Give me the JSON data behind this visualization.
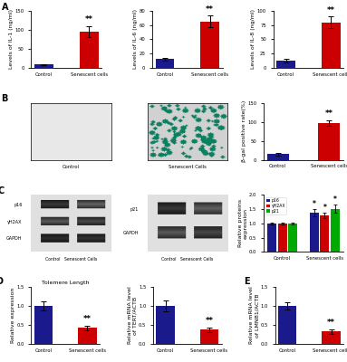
{
  "panel_A": {
    "charts": [
      {
        "ylabel": "Levels of IL-1 (ng/ml)",
        "ylim": [
          0,
          150
        ],
        "yticks": [
          0,
          50,
          100,
          150
        ],
        "bars": [
          {
            "label": "Control",
            "value": 8,
            "error": 2,
            "color": "#1a1a8c"
          },
          {
            "label": "Senescent cells",
            "value": 95,
            "error": 15,
            "color": "#cc0000"
          }
        ],
        "sig": "**",
        "sig_above": "senescent"
      },
      {
        "ylabel": "Levels of IL-6 (ng/ml)",
        "ylim": [
          0,
          80
        ],
        "yticks": [
          0,
          20,
          40,
          60,
          80
        ],
        "bars": [
          {
            "label": "Control",
            "value": 12,
            "error": 2,
            "color": "#1a1a8c"
          },
          {
            "label": "Senescent cells",
            "value": 65,
            "error": 8,
            "color": "#cc0000"
          }
        ],
        "sig": "**",
        "sig_above": "senescent"
      },
      {
        "ylabel": "Levels of IL-8 (ng/ml)",
        "ylim": [
          0,
          100
        ],
        "yticks": [
          0,
          25,
          50,
          75,
          100
        ],
        "bars": [
          {
            "label": "Control",
            "value": 13,
            "error": 3,
            "color": "#1a1a8c"
          },
          {
            "label": "Senescent cells",
            "value": 80,
            "error": 10,
            "color": "#cc0000"
          }
        ],
        "sig": "**",
        "sig_above": "senescent"
      }
    ]
  },
  "panel_B": {
    "chart": {
      "ylabel": "β-gal positive rate(%)",
      "ylim": [
        0,
        150
      ],
      "yticks": [
        0,
        50,
        100,
        150
      ],
      "bars": [
        {
          "label": "Control",
          "value": 15,
          "error": 3,
          "color": "#1a1a8c"
        },
        {
          "label": "Senescent cells",
          "value": 97,
          "error": 8,
          "color": "#cc0000"
        }
      ],
      "sig": "**",
      "sig_above": "senescent"
    }
  },
  "panel_C": {
    "chart": {
      "ylabel": "Relative proteins\nexpression",
      "ylim": [
        0,
        2.0
      ],
      "yticks": [
        0.0,
        0.5,
        1.0,
        1.5,
        2.0
      ],
      "groups": [
        "Control",
        "Senescent cells"
      ],
      "series": [
        {
          "name": "p16",
          "color": "#1a1a8c",
          "values": [
            1.0,
            1.38
          ],
          "errors": [
            0.03,
            0.12
          ]
        },
        {
          "name": "γH2AX",
          "color": "#cc0000",
          "values": [
            1.0,
            1.28
          ],
          "errors": [
            0.03,
            0.1
          ]
        },
        {
          "name": "p21",
          "color": "#00aa00",
          "values": [
            1.0,
            1.52
          ],
          "errors": [
            0.03,
            0.15
          ]
        }
      ]
    }
  },
  "panel_D": {
    "charts": [
      {
        "title": "Tolemere Length",
        "panel_label": "D",
        "ylabel": "Relative expression",
        "ylim": [
          0,
          1.5
        ],
        "yticks": [
          0.0,
          0.5,
          1.0,
          1.5
        ],
        "bars": [
          {
            "label": "Control",
            "value": 1.0,
            "error": 0.12,
            "color": "#1a1a8c"
          },
          {
            "label": "Senescent cells",
            "value": 0.42,
            "error": 0.06,
            "color": "#cc0000"
          }
        ],
        "sig": "**"
      },
      {
        "title": "",
        "panel_label": "",
        "ylabel": "Relative mRNA level\nof TERT/ACTB",
        "ylim": [
          0,
          1.5
        ],
        "yticks": [
          0.0,
          0.5,
          1.0,
          1.5
        ],
        "bars": [
          {
            "label": "Control",
            "value": 1.0,
            "error": 0.15,
            "color": "#1a1a8c"
          },
          {
            "label": "Senescent cells",
            "value": 0.38,
            "error": 0.06,
            "color": "#cc0000"
          }
        ],
        "sig": "**"
      },
      {
        "title": "",
        "panel_label": "E",
        "ylabel": "Relative mRNA level\nof LMNB1/ACTB",
        "ylim": [
          0,
          1.5
        ],
        "yticks": [
          0.0,
          0.5,
          1.0,
          1.5
        ],
        "bars": [
          {
            "label": "Control",
            "value": 1.0,
            "error": 0.1,
            "color": "#1a1a8c"
          },
          {
            "label": "Senescent cells",
            "value": 0.33,
            "error": 0.06,
            "color": "#cc0000"
          }
        ],
        "sig": "**"
      }
    ]
  },
  "bg_color": "#ffffff",
  "label_fontsize": 4.5,
  "tick_fontsize": 3.8,
  "bar_width": 0.42
}
